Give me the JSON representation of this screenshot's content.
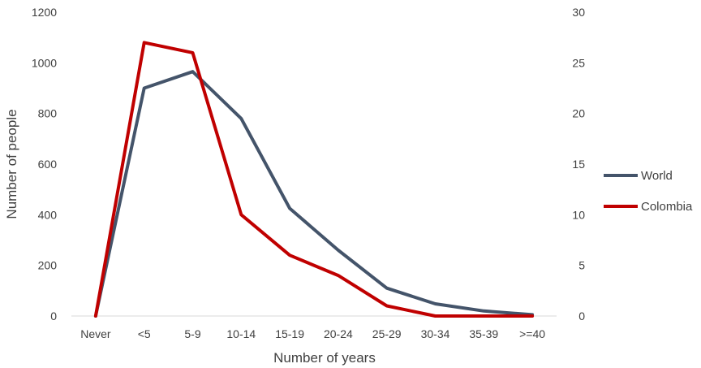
{
  "chart_data": {
    "type": "line",
    "title": "",
    "xlabel": "Number of years",
    "ylabel": "Number of people",
    "categories": [
      "Never",
      "<5",
      "5-9",
      "10-14",
      "15-19",
      "20-24",
      "25-29",
      "30-34",
      "35-39",
      ">=40"
    ],
    "y_left": {
      "ylim": [
        0,
        1200
      ],
      "ticks": [
        "0",
        "200",
        "400",
        "600",
        "800",
        "1000",
        "1200"
      ]
    },
    "y_right": {
      "ylim": [
        0,
        30
      ],
      "ticks": [
        "0",
        "5",
        "10",
        "15",
        "20",
        "25",
        "30"
      ]
    },
    "grid": false,
    "legend_position": "right",
    "series": [
      {
        "name": "World",
        "axis": "left",
        "color": "#44546a",
        "values": [
          0,
          900,
          965,
          780,
          425,
          260,
          110,
          48,
          20,
          5
        ]
      },
      {
        "name": "Colombia",
        "axis": "right",
        "color": "#c00000",
        "values": [
          0,
          27,
          26,
          10,
          6,
          4,
          1,
          0,
          0,
          0
        ]
      }
    ]
  }
}
